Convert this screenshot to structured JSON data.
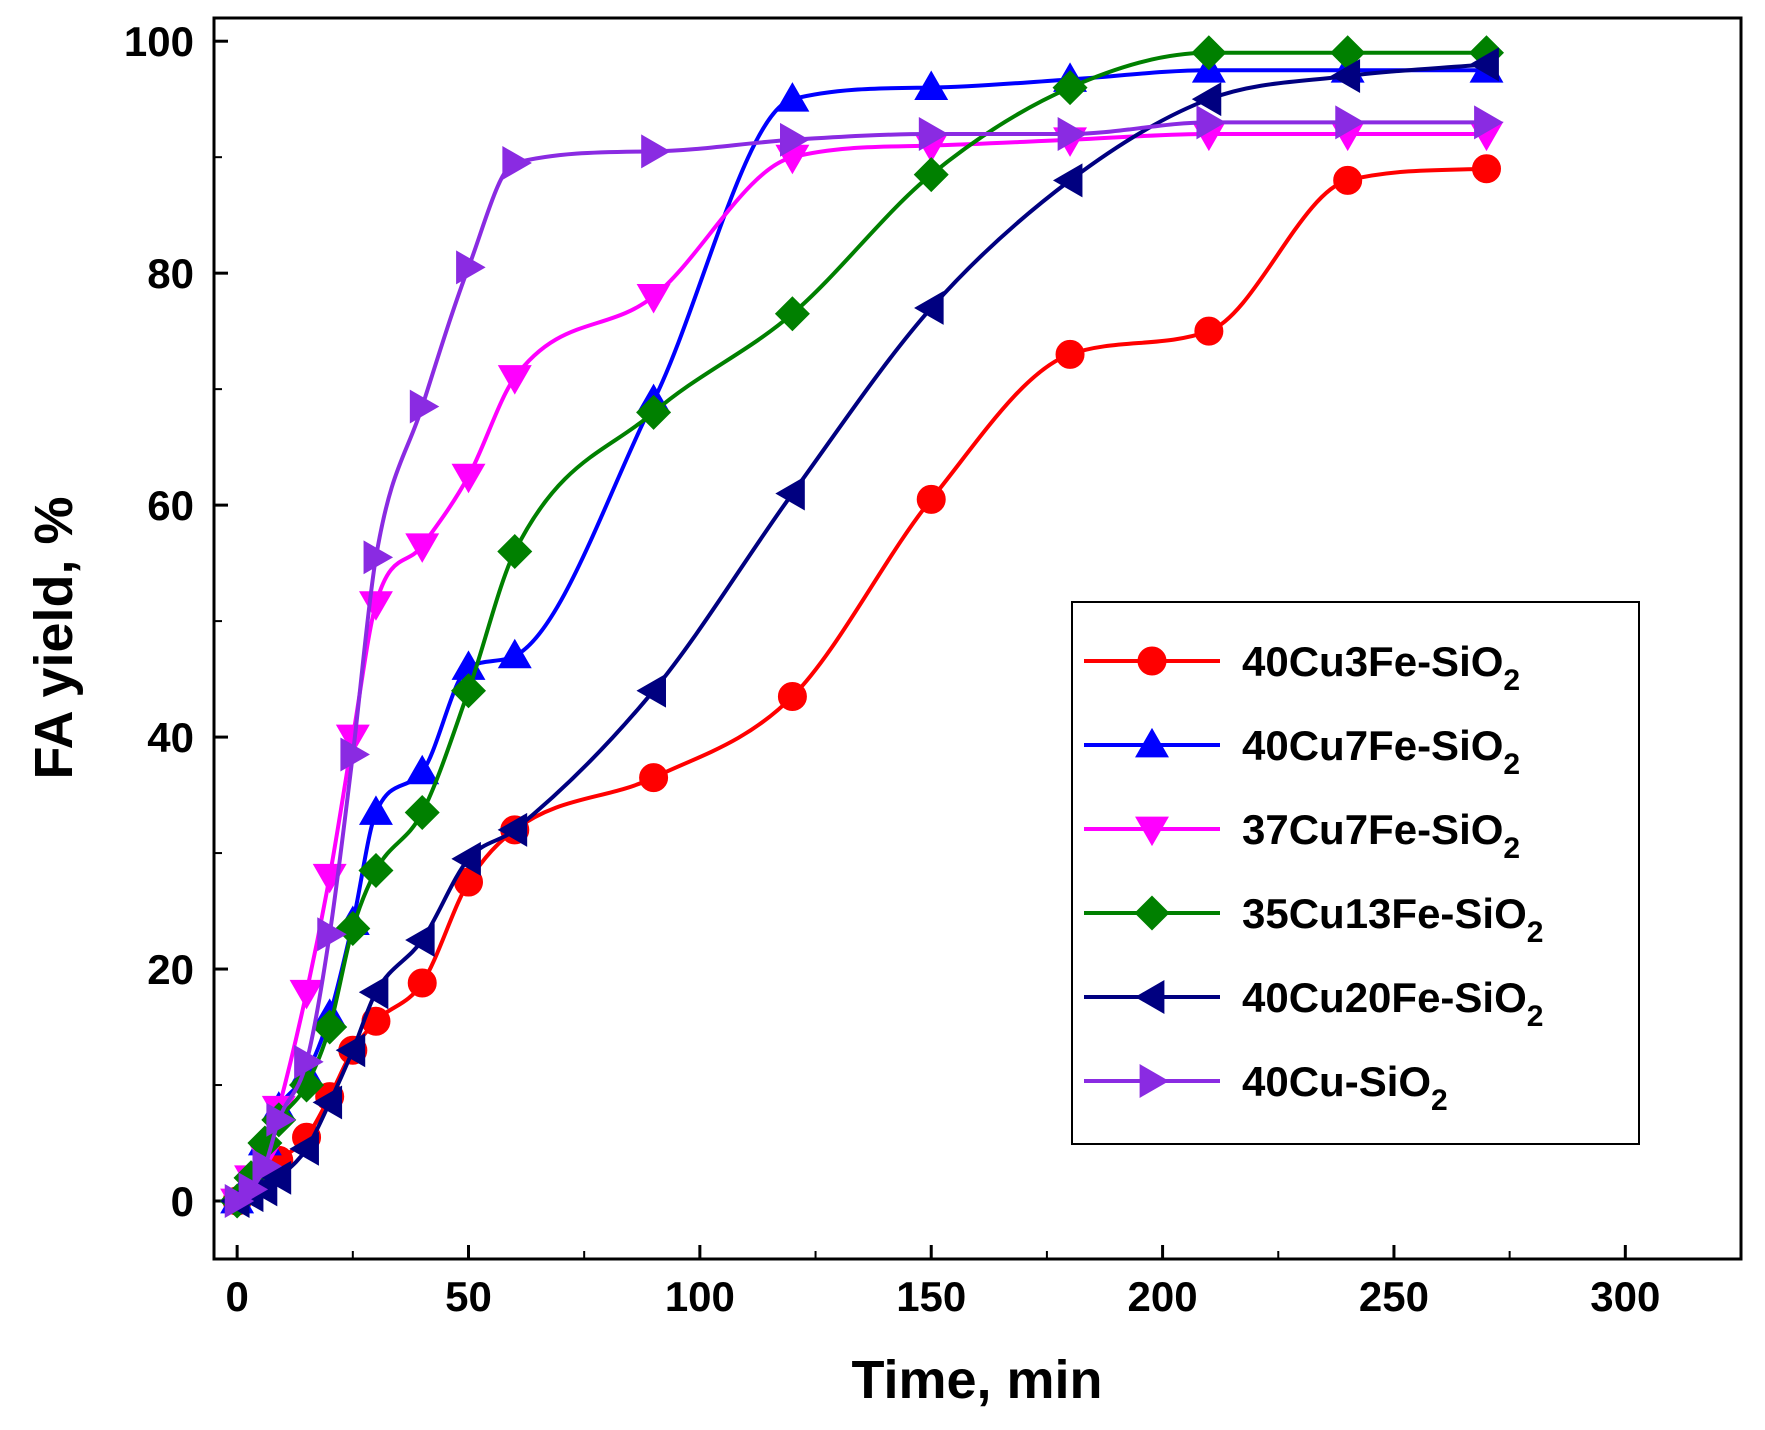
{
  "chart_data": {
    "type": "line",
    "title": "",
    "xlabel": "Time, min",
    "ylabel": "FA yield, %",
    "xlim": [
      -5,
      325
    ],
    "ylim": [
      -5,
      102
    ],
    "xticks": [
      0,
      50,
      100,
      150,
      200,
      250,
      300
    ],
    "yticks": [
      0,
      20,
      40,
      60,
      80,
      100
    ],
    "grid": false,
    "legend_position": "center-right",
    "series": [
      {
        "name_main": "40Cu3Fe-SiO",
        "name_sub": "2",
        "color": "#ff0000",
        "marker": "circle",
        "points": [
          [
            0,
            0
          ],
          [
            3,
            1
          ],
          [
            6,
            2.5
          ],
          [
            9,
            3.5
          ],
          [
            15,
            5.5
          ],
          [
            20,
            9
          ],
          [
            25,
            13
          ],
          [
            30,
            15.5
          ],
          [
            40,
            18.8
          ],
          [
            50,
            27.5
          ],
          [
            60,
            32
          ],
          [
            90,
            36.5
          ],
          [
            120,
            43.5
          ],
          [
            150,
            60.5
          ],
          [
            180,
            73
          ],
          [
            210,
            75
          ],
          [
            240,
            88
          ],
          [
            270,
            89
          ]
        ]
      },
      {
        "name_main": "40Cu7Fe-SiO",
        "name_sub": "2",
        "color": "#0000ff",
        "marker": "triangle-up",
        "points": [
          [
            0,
            0
          ],
          [
            3,
            2
          ],
          [
            6,
            5
          ],
          [
            9,
            8
          ],
          [
            15,
            11
          ],
          [
            20,
            16
          ],
          [
            25,
            24
          ],
          [
            30,
            33.5
          ],
          [
            40,
            37
          ],
          [
            50,
            46
          ],
          [
            60,
            47
          ],
          [
            90,
            69
          ],
          [
            120,
            95
          ],
          [
            150,
            96
          ],
          [
            180,
            96.7
          ],
          [
            210,
            97.5
          ],
          [
            240,
            97.5
          ],
          [
            270,
            97.5
          ]
        ]
      },
      {
        "name_main": "37Cu7Fe-SiO",
        "name_sub": "2",
        "color": "#ff00ff",
        "marker": "triangle-down",
        "points": [
          [
            0,
            0
          ],
          [
            3,
            2
          ],
          [
            6,
            4
          ],
          [
            9,
            8
          ],
          [
            15,
            18
          ],
          [
            20,
            28
          ],
          [
            25,
            40
          ],
          [
            30,
            51.5
          ],
          [
            40,
            56.5
          ],
          [
            50,
            62.5
          ],
          [
            60,
            71
          ],
          [
            90,
            78
          ],
          [
            120,
            90
          ],
          [
            150,
            91
          ],
          [
            180,
            91.5
          ],
          [
            210,
            92
          ],
          [
            240,
            92
          ],
          [
            270,
            92
          ]
        ]
      },
      {
        "name_main": "35Cu13Fe-SiO",
        "name_sub": "2",
        "color": "#008000",
        "marker": "diamond",
        "points": [
          [
            0,
            0
          ],
          [
            3,
            2
          ],
          [
            6,
            5
          ],
          [
            9,
            7
          ],
          [
            15,
            10
          ],
          [
            20,
            15
          ],
          [
            25,
            23.5
          ],
          [
            30,
            28.5
          ],
          [
            40,
            33.5
          ],
          [
            50,
            44
          ],
          [
            60,
            56
          ],
          [
            90,
            68
          ],
          [
            120,
            76.5
          ],
          [
            150,
            88.5
          ],
          [
            180,
            96
          ],
          [
            210,
            99
          ],
          [
            240,
            99
          ],
          [
            270,
            99
          ]
        ]
      },
      {
        "name_main": "40Cu20Fe-SiO",
        "name_sub": "2",
        "color": "#000080",
        "marker": "triangle-left",
        "points": [
          [
            0,
            0
          ],
          [
            3,
            0.5
          ],
          [
            6,
            1
          ],
          [
            9,
            2
          ],
          [
            15,
            4.5
          ],
          [
            20,
            8.5
          ],
          [
            25,
            13
          ],
          [
            30,
            18
          ],
          [
            40,
            22.5
          ],
          [
            50,
            29.5
          ],
          [
            60,
            32
          ],
          [
            90,
            44
          ],
          [
            120,
            61
          ],
          [
            150,
            77
          ],
          [
            180,
            88
          ],
          [
            210,
            95
          ],
          [
            240,
            97
          ],
          [
            270,
            98
          ]
        ]
      },
      {
        "name_main": "40Cu-SiO",
        "name_sub": "2",
        "color": "#8a2be2",
        "marker": "triangle-right",
        "points": [
          [
            0,
            0
          ],
          [
            3,
            1
          ],
          [
            6,
            3
          ],
          [
            9,
            7
          ],
          [
            15,
            12
          ],
          [
            20,
            23
          ],
          [
            25,
            38.5
          ],
          [
            30,
            55.5
          ],
          [
            40,
            68.5
          ],
          [
            50,
            80.5
          ],
          [
            60,
            89.5
          ],
          [
            90,
            90.5
          ],
          [
            120,
            91.5
          ],
          [
            150,
            92
          ],
          [
            180,
            92
          ],
          [
            210,
            93
          ],
          [
            240,
            93
          ],
          [
            270,
            93
          ]
        ]
      }
    ]
  }
}
